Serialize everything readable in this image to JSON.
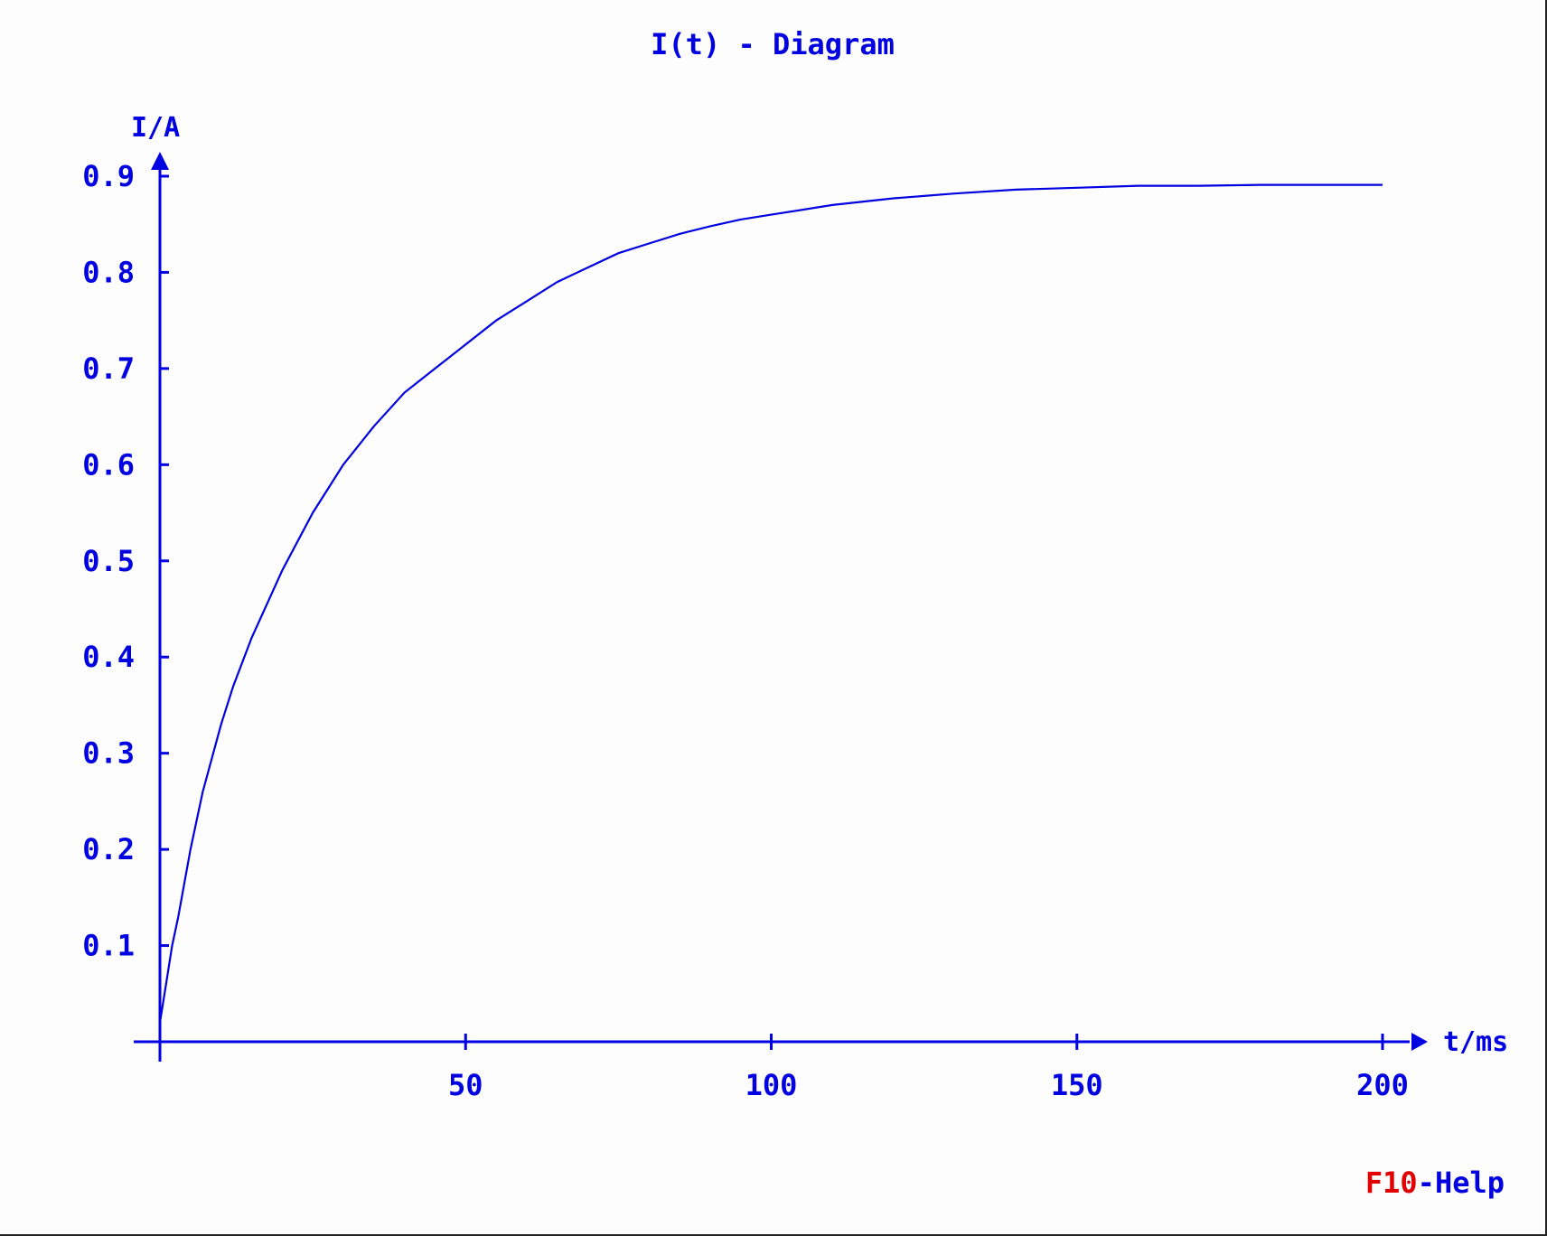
{
  "chart_data": {
    "type": "line",
    "title": "I(t) - Diagram",
    "xlabel": "t/ms",
    "ylabel": "I/A",
    "xlim": [
      0,
      200
    ],
    "ylim": [
      0,
      0.9
    ],
    "x_ticks": [
      50,
      100,
      150,
      200
    ],
    "x_tick_labels": [
      "50",
      "100",
      "150",
      "200"
    ],
    "y_ticks": [
      0.1,
      0.2,
      0.3,
      0.4,
      0.5,
      0.6,
      0.7,
      0.8,
      0.9
    ],
    "y_tick_labels": [
      "0.1",
      "0.2",
      "0.3",
      "0.4",
      "0.5",
      "0.6",
      "0.7",
      "0.8",
      "0.9"
    ],
    "grid": false,
    "legend": "none",
    "series": [
      {
        "x": [
          0,
          1,
          2,
          3,
          5,
          7,
          10,
          12,
          15,
          20,
          25,
          30,
          35,
          40,
          45,
          50,
          55,
          60,
          65,
          70,
          75,
          80,
          85,
          90,
          95,
          100,
          110,
          120,
          130,
          140,
          150,
          160,
          170,
          180,
          190,
          200
        ],
        "values": [
          0.02,
          0.06,
          0.1,
          0.13,
          0.2,
          0.26,
          0.33,
          0.37,
          0.42,
          0.49,
          0.55,
          0.6,
          0.64,
          0.675,
          0.7,
          0.725,
          0.75,
          0.77,
          0.79,
          0.805,
          0.82,
          0.83,
          0.84,
          0.848,
          0.855,
          0.86,
          0.87,
          0.877,
          0.882,
          0.886,
          0.888,
          0.89,
          0.89,
          0.891,
          0.891,
          0.891
        ]
      }
    ],
    "colors": {
      "foreground": "#0000e0",
      "background": "#fdfdfd",
      "help_key": "#e00000"
    }
  },
  "footer": {
    "help_key": "F10",
    "help_text": "-Help"
  }
}
